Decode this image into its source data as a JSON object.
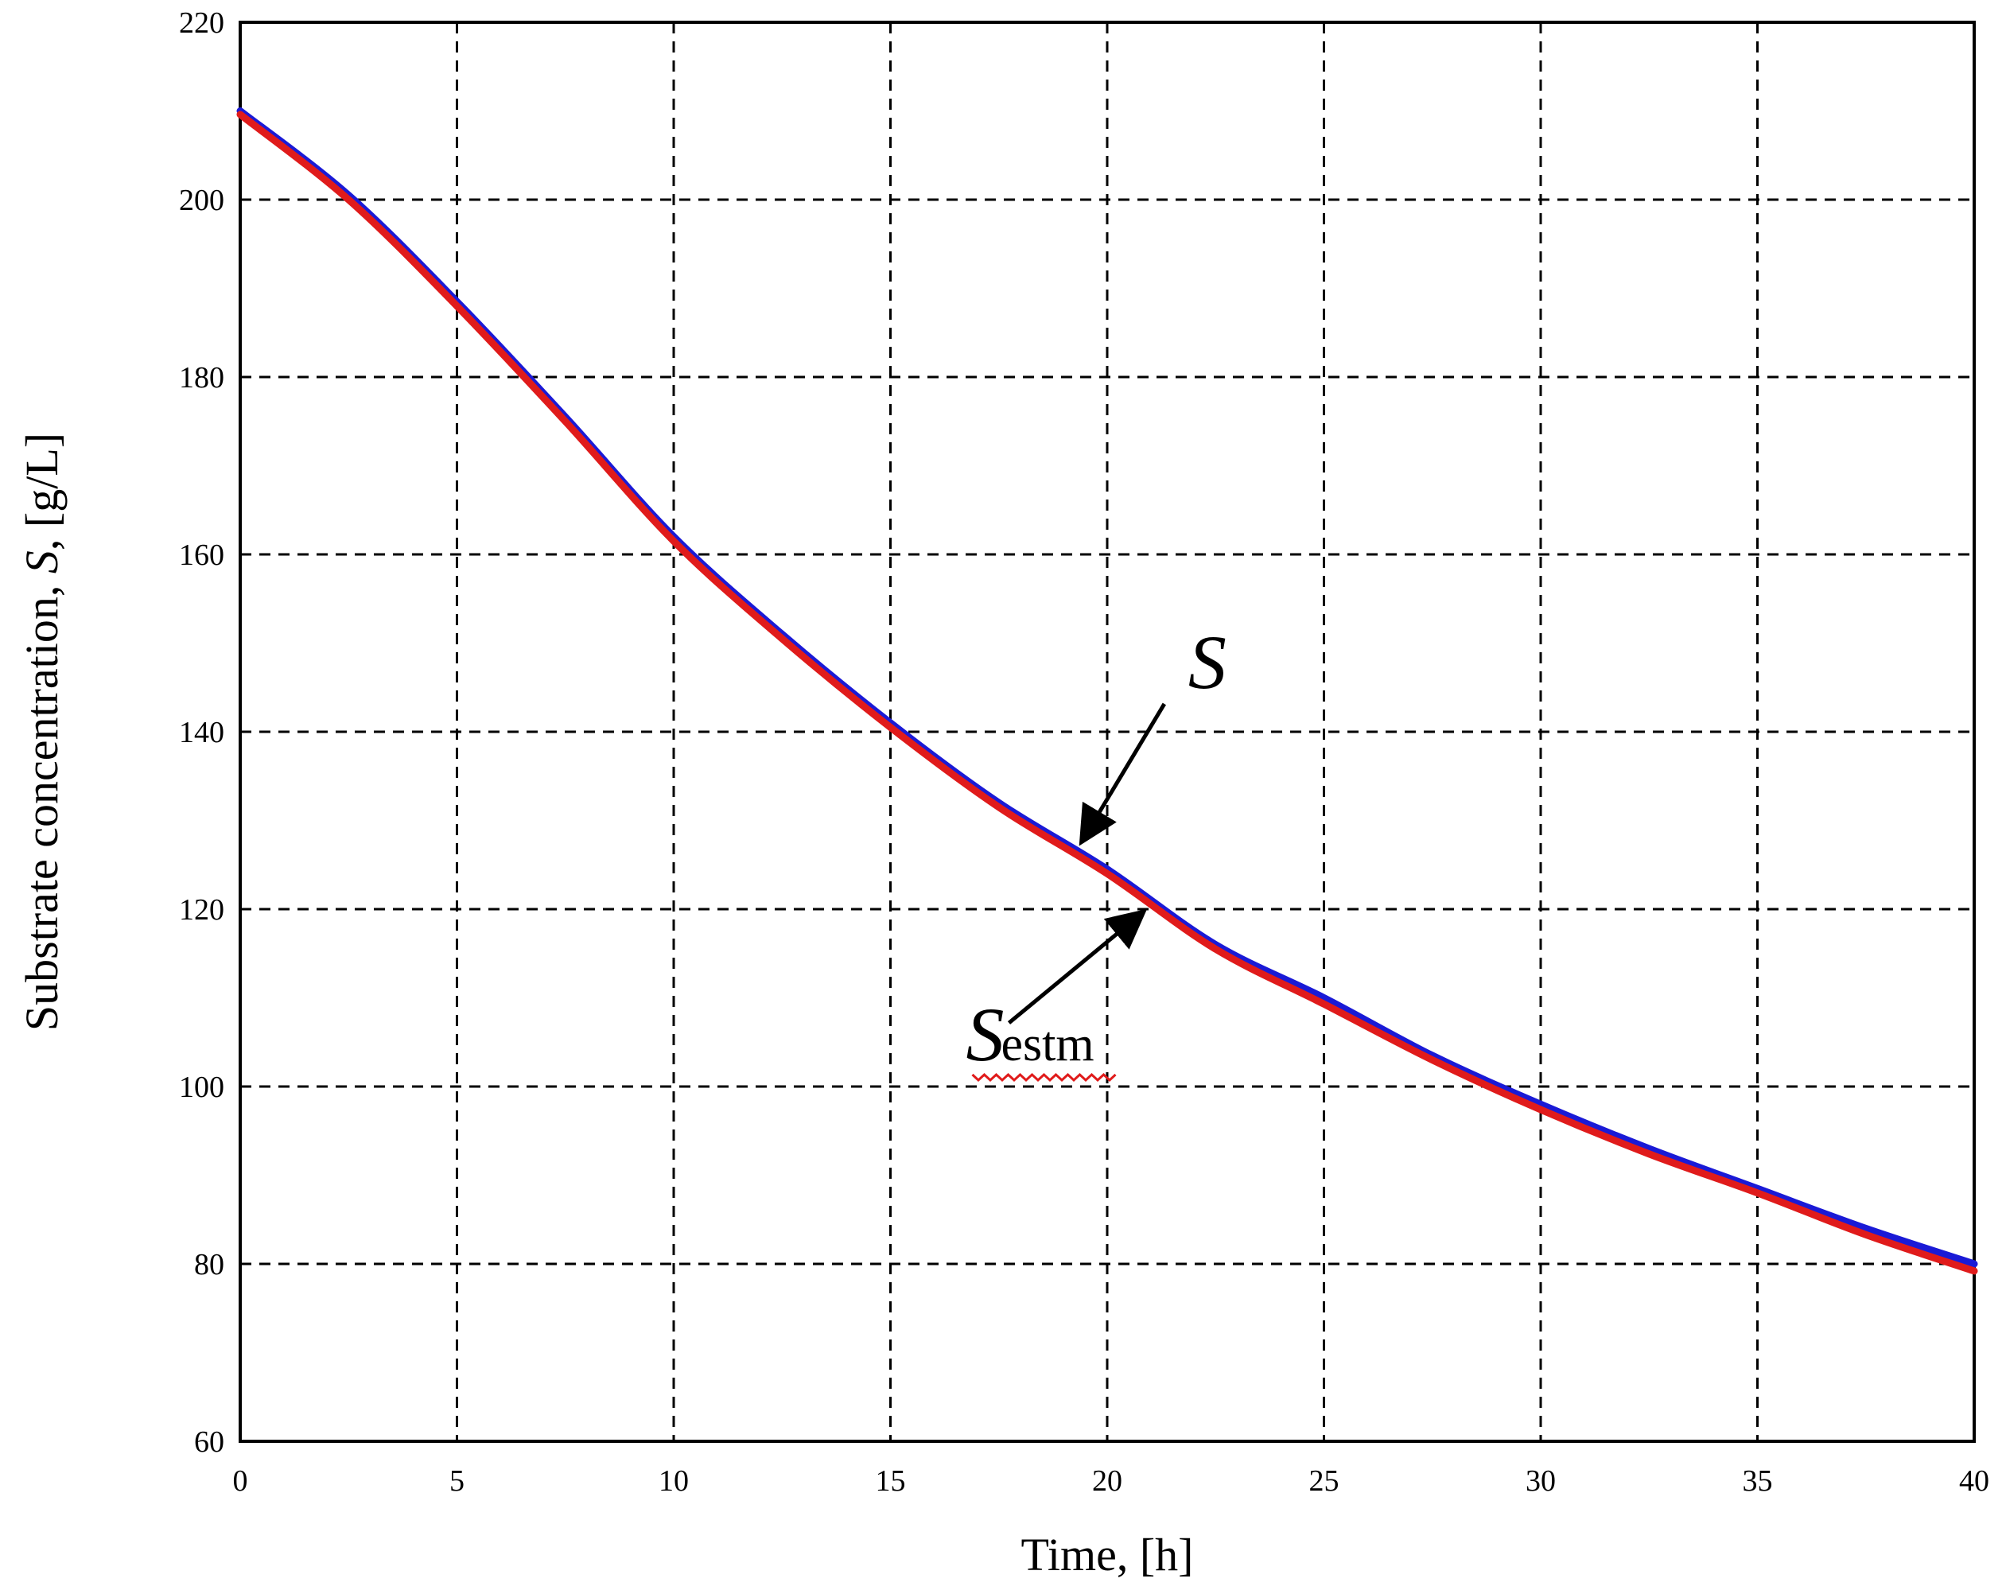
{
  "chart_data": {
    "type": "line",
    "title": "",
    "xlabel": "Time, [h]",
    "ylabel_parts": [
      "Substrate concentration, ",
      "S",
      ", [g/L]"
    ],
    "xlim": [
      0,
      40
    ],
    "ylim": [
      60,
      220
    ],
    "x_ticks": [
      0,
      5,
      10,
      15,
      20,
      25,
      30,
      35,
      40
    ],
    "y_ticks": [
      60,
      80,
      100,
      120,
      140,
      160,
      180,
      200,
      220
    ],
    "x_tick_labels": [
      "0",
      "5",
      "10",
      "15",
      "20",
      "25",
      "30",
      "35",
      "40"
    ],
    "y_tick_labels": [
      "60",
      "80",
      "100",
      "120",
      "140",
      "160",
      "180",
      "200",
      "220"
    ],
    "grid": true,
    "x": [
      0,
      2.5,
      5,
      7.5,
      10,
      12.5,
      15,
      17.5,
      20,
      22.5,
      25,
      27.5,
      30,
      32.5,
      35,
      37.5,
      40
    ],
    "series": [
      {
        "color": "#1a1ad6",
        "values": [
          210,
          200.5,
          188.5,
          175.5,
          162,
          151,
          141,
          132,
          124.5,
          116,
          110,
          103.5,
          98,
          93,
          88.5,
          84,
          80
        ]
      },
      {
        "color": "#e01b1b",
        "values": [
          209.6,
          200,
          188,
          175,
          161.5,
          150.5,
          140.5,
          131.5,
          124,
          115.5,
          109.3,
          103,
          97.4,
          92.4,
          88,
          83.3,
          79.2
        ]
      }
    ],
    "annotations": [
      {
        "label": "S",
        "points_to_series": 0,
        "target": [
          19.3,
          127
        ]
      },
      {
        "label": "S",
        "subscript": "estm",
        "points_to_series": 1,
        "target": [
          21,
          120
        ]
      }
    ]
  }
}
